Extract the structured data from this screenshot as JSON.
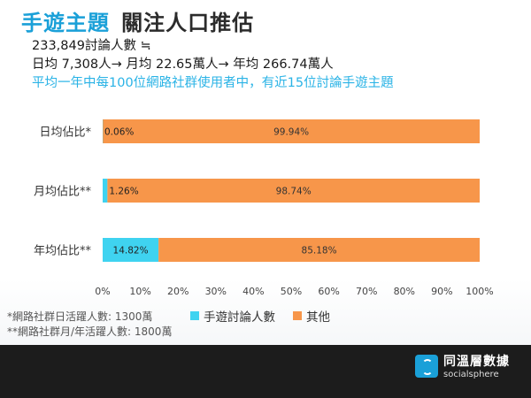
{
  "title": {
    "accent": "手遊主題",
    "main": "關注人口推估"
  },
  "subtitle_lines": [
    "233,849討論人數 ≒",
    "日均 7,308人→ 月均 22.65萬人→ 年均 266.74萬人"
  ],
  "highlight_line": "平均一年中每100位網路社群使用者中，有近15位討論手遊主題",
  "colors": {
    "accent": "#1aa0d8",
    "series_game": "#3fd3f0",
    "series_other": "#f7964a",
    "highlight_text": "#2ab3e6"
  },
  "chart_data": {
    "type": "bar",
    "orientation": "horizontal",
    "stacked": "percent",
    "categories": [
      "日均佔比*",
      "月均佔比**",
      "年均佔比**"
    ],
    "series": [
      {
        "name": "手遊討論人數",
        "values": [
          0.06,
          1.26,
          14.82
        ],
        "labels": [
          "0.06%",
          "1.26%",
          "14.82%"
        ]
      },
      {
        "name": "其他",
        "values": [
          99.94,
          98.74,
          85.18
        ],
        "labels": [
          "99.94%",
          "98.74%",
          "85.18%"
        ]
      }
    ],
    "xlim": [
      0,
      100
    ],
    "x_ticks": [
      "0%",
      "10%",
      "20%",
      "30%",
      "40%",
      "50%",
      "60%",
      "70%",
      "80%",
      "90%",
      "100%"
    ],
    "grid": false,
    "legend_position": "bottom"
  },
  "legend": [
    {
      "label": "手遊討論人數",
      "icon": "square-swatch"
    },
    {
      "label": "其他",
      "icon": "square-swatch"
    }
  ],
  "footnotes": [
    "*網路社群日活躍人數: 1300萬",
    "**網路社群月/年活躍人數: 1800萬"
  ],
  "brand": {
    "name_zh": "同溫層數據",
    "name_en": "socialsphere",
    "icon": "socialsphere-logo-icon"
  }
}
